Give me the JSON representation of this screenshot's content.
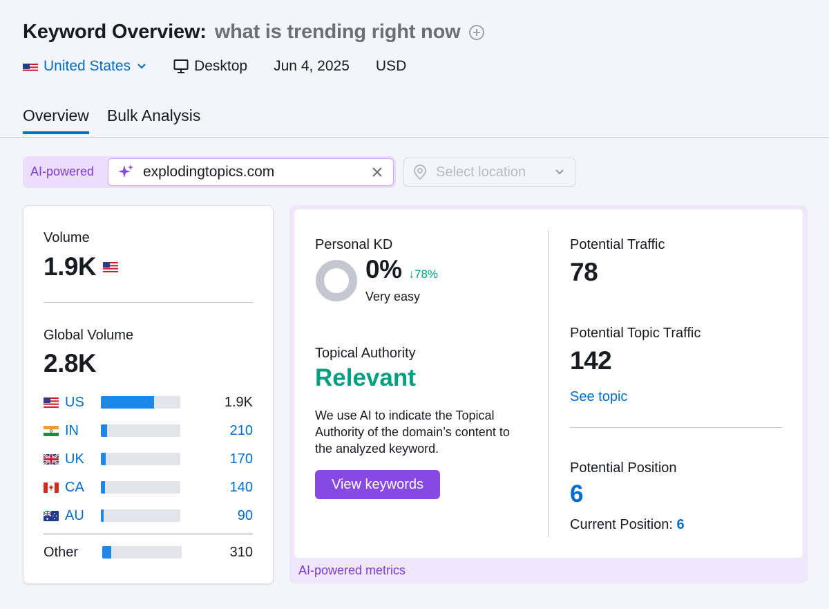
{
  "header": {
    "title": "Keyword Overview:",
    "keyword": "what is trending right now",
    "database": "United States",
    "device": "Desktop",
    "date": "Jun 4, 2025",
    "currency": "USD"
  },
  "tabs": [
    {
      "label": "Overview",
      "active": true
    },
    {
      "label": "Bulk Analysis",
      "active": false
    }
  ],
  "search": {
    "ai_label": "AI-powered",
    "domain": "explodingtopics.com",
    "location_placeholder": "Select location"
  },
  "volume": {
    "label": "Volume",
    "value": "1.9K",
    "global_label": "Global Volume",
    "global_value": "2.8K",
    "countries": [
      {
        "code": "US",
        "value": "1.9K",
        "share": 0.67
      },
      {
        "code": "IN",
        "value": "210",
        "share": 0.075
      },
      {
        "code": "UK",
        "value": "170",
        "share": 0.06
      },
      {
        "code": "CA",
        "value": "140",
        "share": 0.05
      },
      {
        "code": "AU",
        "value": "90",
        "share": 0.032
      }
    ],
    "other": {
      "label": "Other",
      "value": "310",
      "share": 0.11
    }
  },
  "metrics": {
    "personal_kd_label": "Personal KD",
    "personal_kd_value": "0%",
    "personal_kd_delta": "↓78%",
    "personal_kd_desc": "Very easy",
    "topical_authority_label": "Topical Authority",
    "topical_authority_value": "Relevant",
    "topical_authority_desc": "We use AI to indicate the Topical Authority of the domain’s content to the analyzed keyword.",
    "view_keywords": "View keywords",
    "potential_traffic_label": "Potential Traffic",
    "potential_traffic_value": "78",
    "potential_topic_traffic_label": "Potential Topic Traffic",
    "potential_topic_traffic_value": "142",
    "see_topic": "See topic",
    "potential_position_label": "Potential Position",
    "potential_position_value": "6",
    "current_position_label": "Current Position:",
    "current_position_value": "6",
    "footer": "AI-powered metrics"
  },
  "colors": {
    "accent_blue": "#006dca",
    "bar_blue": "#1d87e8",
    "green": "#009f81",
    "purple": "#8649e1",
    "purple_text": "#7c3bd6"
  }
}
